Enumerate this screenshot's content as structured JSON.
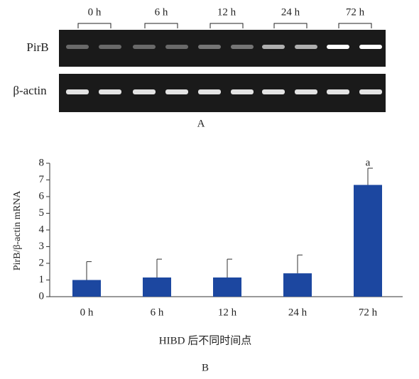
{
  "gel": {
    "lanes": [
      "0 h",
      "6 h",
      "12 h",
      "24 h",
      "72 h"
    ],
    "rows": [
      "PirB",
      "β-actin"
    ],
    "panel_label": "A"
  },
  "chart_data": {
    "type": "bar",
    "categories": [
      "0 h",
      "6 h",
      "12 h",
      "24 h",
      "72 h"
    ],
    "values": [
      1.0,
      1.15,
      1.15,
      1.4,
      6.7
    ],
    "errors": [
      1.1,
      1.1,
      1.1,
      1.1,
      1.0
    ],
    "annotations": [
      null,
      null,
      null,
      null,
      "a"
    ],
    "color": "#1c47a0",
    "ylim": [
      0,
      8
    ],
    "yticks": [
      0,
      1,
      2,
      3,
      4,
      5,
      6,
      7,
      8
    ],
    "ylabel": "PirB/β-actin mRNA",
    "xlabel": "HIBD 后不同时间点",
    "panel_label": "B"
  }
}
